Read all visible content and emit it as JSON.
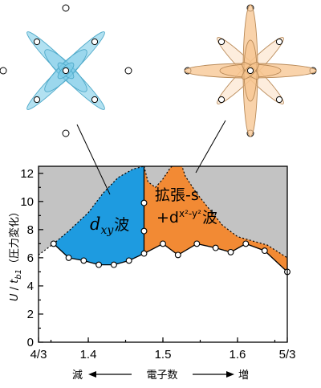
{
  "chart_data": {
    "type": "area",
    "ylabel_parts": [
      "U",
      " / ",
      "t",
      "b1",
      "（圧力変化）"
    ],
    "xlabel": {
      "left": "減",
      "center": "電子数",
      "right": "増"
    },
    "xlim": [
      1.3333,
      1.6667
    ],
    "ylim": [
      0,
      12.5
    ],
    "x_tick_labels": [
      "4/3",
      "1.4",
      "1.5",
      "1.6",
      "5/3"
    ],
    "x_tick_values": [
      1.3333,
      1.4,
      1.5,
      1.6,
      1.6667
    ],
    "y_tick_labels": [
      "0",
      "2",
      "4",
      "6",
      "8",
      "10",
      "12"
    ],
    "y_tick_values": [
      0,
      2,
      4,
      6,
      8,
      10,
      12
    ],
    "regions": [
      {
        "id": "dxy",
        "label_main": "d",
        "label_sub": "xy",
        "label_tail": "波",
        "color": "#1e9be0"
      },
      {
        "id": "ext-s",
        "label_line1": "拡張-s",
        "label_line2_prefix": "+d",
        "label_line2_sub": "x²-y²",
        "label_line2_tail": "波",
        "color": "#f28a34"
      }
    ],
    "upper_region_color": "#c3c3c3",
    "boundary_points": [
      {
        "x": 1.3535,
        "y": 7.0
      },
      {
        "x": 1.3737,
        "y": 6.0
      },
      {
        "x": 1.3939,
        "y": 5.8
      },
      {
        "x": 1.4141,
        "y": 5.5
      },
      {
        "x": 1.4343,
        "y": 5.5
      },
      {
        "x": 1.4545,
        "y": 5.8
      },
      {
        "x": 1.4747,
        "y": 6.3
      },
      {
        "x": 1.5,
        "y": 7.0
      },
      {
        "x": 1.5202,
        "y": 6.2
      },
      {
        "x": 1.5455,
        "y": 7.0
      },
      {
        "x": 1.5707,
        "y": 6.7
      },
      {
        "x": 1.5909,
        "y": 6.4
      },
      {
        "x": 1.6111,
        "y": 7.0
      },
      {
        "x": 1.6364,
        "y": 6.5
      },
      {
        "x": 1.6667,
        "y": 5.0
      }
    ],
    "vertical_boundary_points": [
      {
        "x": 1.4747,
        "y": 7.9
      },
      {
        "x": 1.4747,
        "y": 9.9
      }
    ]
  },
  "insets": [
    {
      "id": "dxy-orbital",
      "color": "#7fcde8",
      "line_color": "#4ea9c9"
    },
    {
      "id": "ext-s-orbital",
      "color": "#f7c48f",
      "line_color": "#b98a58"
    }
  ]
}
